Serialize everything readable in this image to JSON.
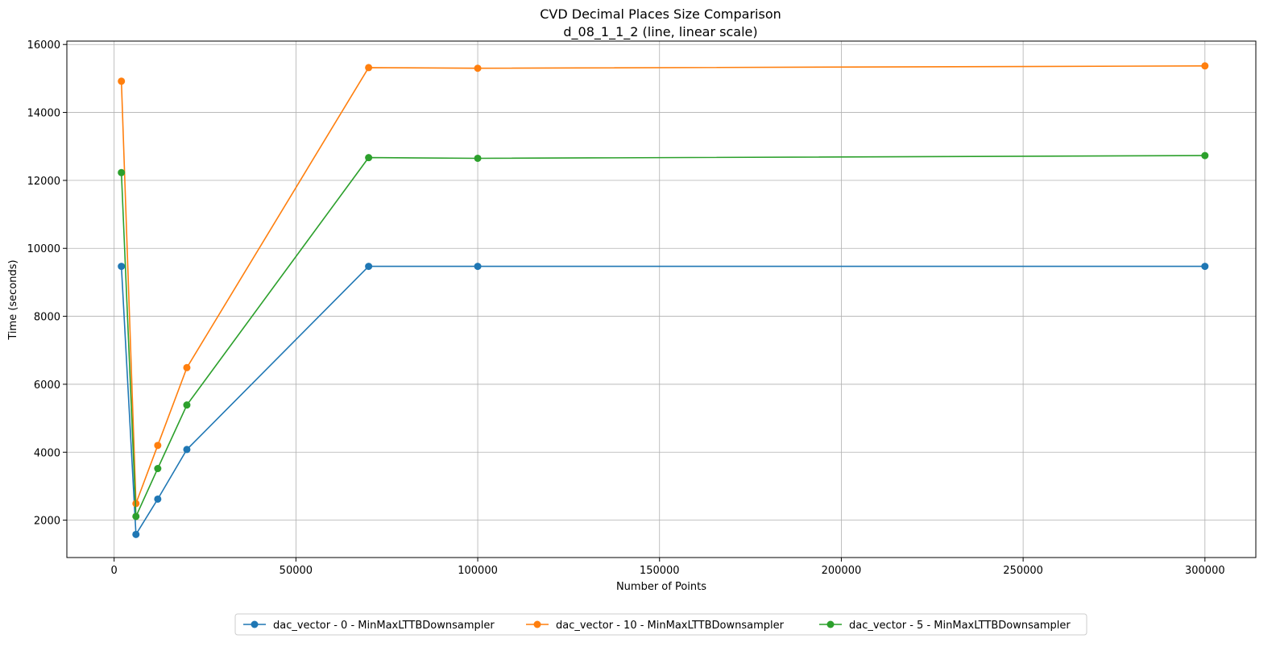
{
  "chart_data": {
    "type": "line",
    "title": "CVD Decimal Places Size Comparison",
    "subtitle": "d_08_1_1_2 (line, linear scale)",
    "xlabel": "Number of Points",
    "ylabel": "Time (seconds)",
    "xlim": [
      -13000,
      314000
    ],
    "ylim": [
      900,
      16100
    ],
    "xticks": [
      0,
      50000,
      100000,
      150000,
      200000,
      250000,
      300000
    ],
    "yticks": [
      2000,
      4000,
      6000,
      8000,
      10000,
      12000,
      14000,
      16000
    ],
    "grid": true,
    "legend_position": "bottom-center",
    "x": [
      2000,
      6000,
      12000,
      20000,
      70000,
      100000,
      300000
    ],
    "series": [
      {
        "name": "dac_vector - 0 - MinMaxLTTBDownsampler",
        "color": "#1f77b4",
        "values": [
          9470,
          1580,
          2620,
          4080,
          9470,
          9470,
          9470
        ]
      },
      {
        "name": "dac_vector - 10 - MinMaxLTTBDownsampler",
        "color": "#ff7f0e",
        "values": [
          14920,
          2490,
          4200,
          6490,
          15320,
          15300,
          15370
        ]
      },
      {
        "name": "dac_vector - 5 - MinMaxLTTBDownsampler",
        "color": "#2ca02c",
        "values": [
          12230,
          2110,
          3520,
          5390,
          12670,
          12650,
          12730
        ]
      }
    ]
  }
}
